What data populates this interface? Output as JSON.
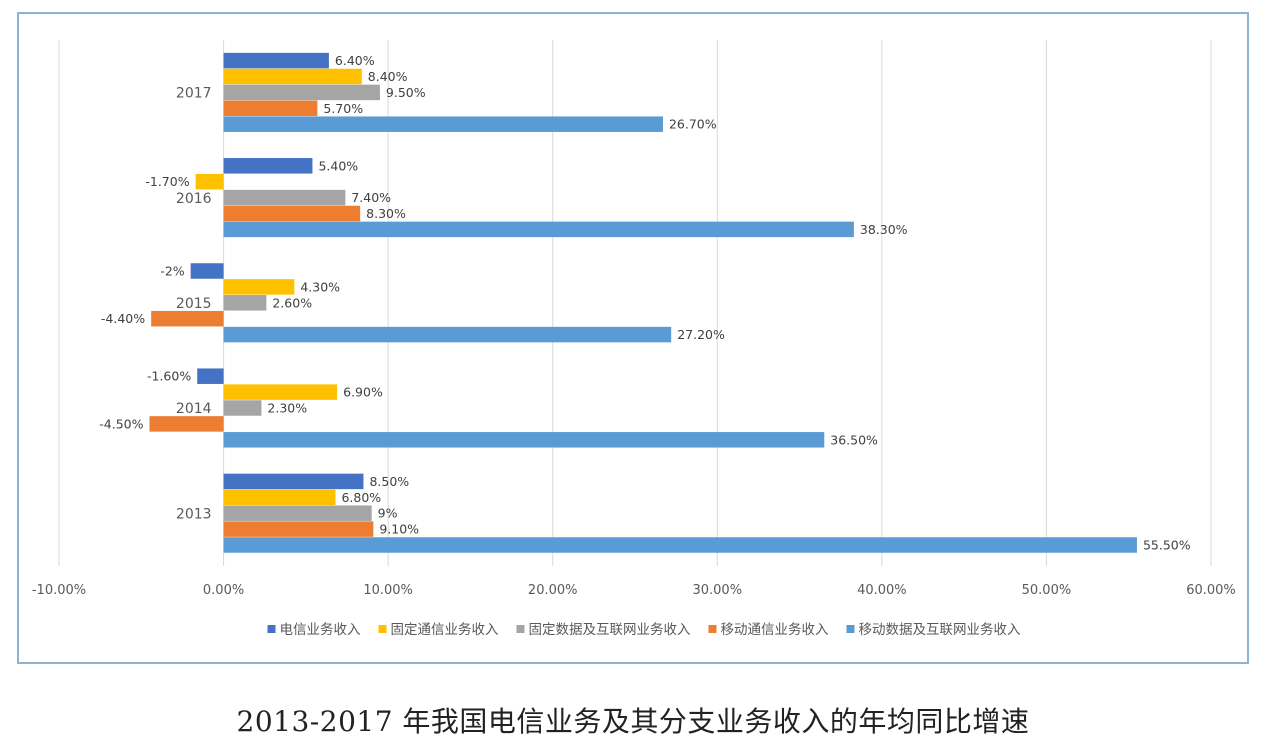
{
  "caption": "2013-2017 年我国电信业务及其分支业务收入的年均同比增速",
  "chart_data": {
    "type": "bar",
    "orientation": "horizontal",
    "categories": [
      "2013",
      "2014",
      "2015",
      "2016",
      "2017"
    ],
    "series": [
      {
        "name": "电信业务收入",
        "color": "#4472c4",
        "values": [
          8.5,
          -1.6,
          -2,
          5.4,
          6.4
        ],
        "labels": [
          "8.50%",
          "-1.60%",
          "-2%",
          "5.40%",
          "6.40%"
        ]
      },
      {
        "name": "固定通信业务收入",
        "color": "#ffc000",
        "values": [
          6.8,
          6.9,
          4.3,
          -1.7,
          8.4
        ],
        "labels": [
          "6.80%",
          "6.90%",
          "4.30%",
          "-1.70%",
          "8.40%"
        ]
      },
      {
        "name": "固定数据及互联网业务收入",
        "color": "#a5a5a5",
        "values": [
          9,
          2.3,
          2.6,
          7.4,
          9.5
        ],
        "labels": [
          "9%",
          "2.30%",
          "2.60%",
          "7.40%",
          "9.50%"
        ]
      },
      {
        "name": "移动通信业务收入",
        "color": "#ed7d31",
        "values": [
          9.1,
          -4.5,
          -4.4,
          8.3,
          5.7
        ],
        "labels": [
          "9.10%",
          "-4.50%",
          "-4.40%",
          "8.30%",
          "5.70%"
        ]
      },
      {
        "name": "移动数据及互联网业务收入",
        "color": "#5b9bd5",
        "values": [
          55.5,
          36.5,
          27.2,
          38.3,
          26.7
        ],
        "labels": [
          "55.50%",
          "36.50%",
          "27.20%",
          "38.30%",
          "26.70%"
        ]
      }
    ],
    "xlim": [
      -10,
      60
    ],
    "xticks": [
      -10,
      0,
      10,
      20,
      30,
      40,
      50,
      60
    ],
    "xtick_labels": [
      "-10.00%",
      "0.00%",
      "10.00%",
      "20.00%",
      "30.00%",
      "40.00%",
      "50.00%",
      "60.00%"
    ],
    "grid": "vertical",
    "legend_position": "bottom"
  }
}
